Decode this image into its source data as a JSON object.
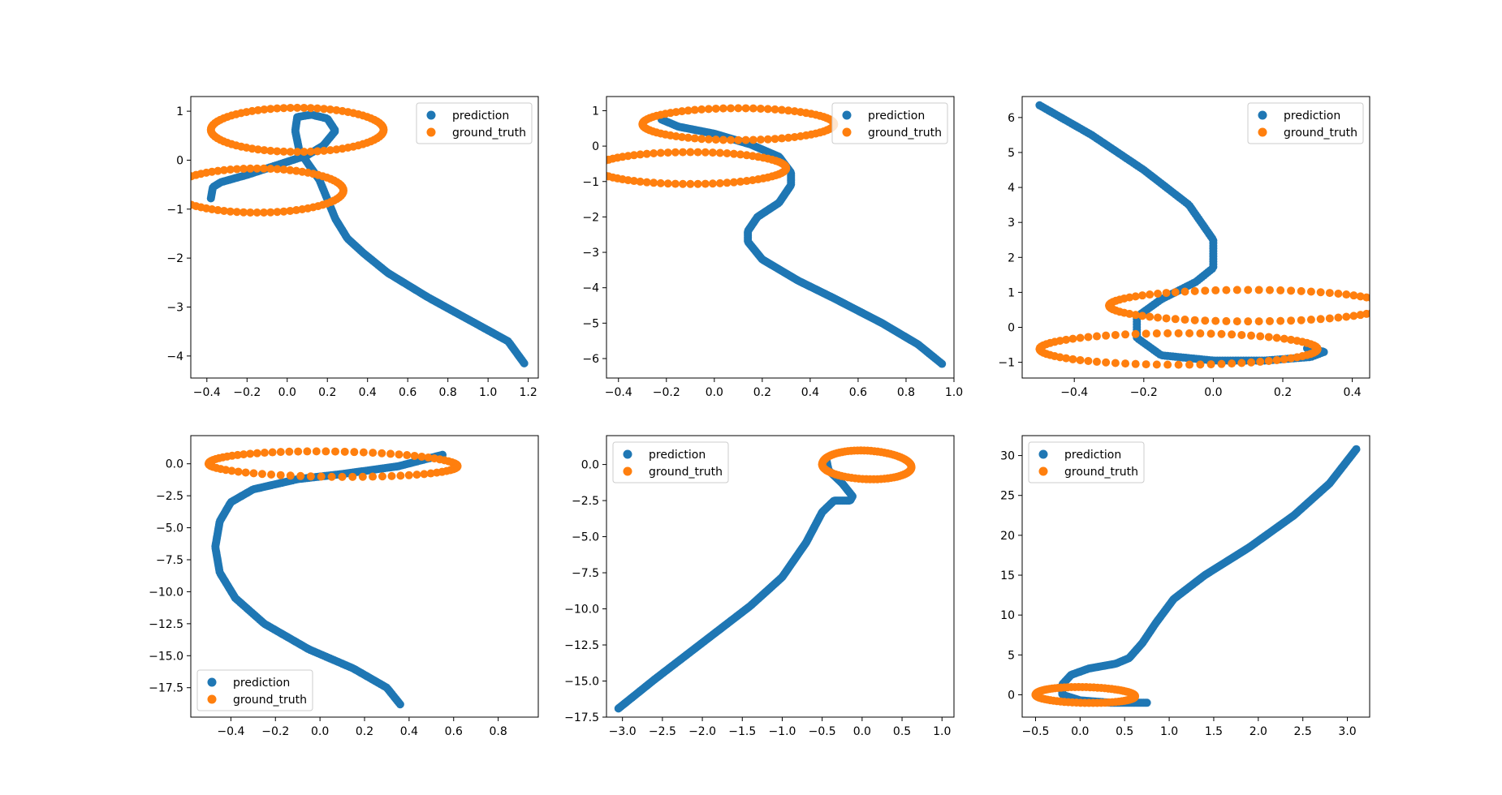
{
  "colors": {
    "prediction": "#1f77b4",
    "ground_truth": "#ff7f0e"
  },
  "legend_labels": [
    "prediction",
    "ground_truth"
  ],
  "chart_data": [
    {
      "type": "scatter",
      "xlim": [
        -0.48,
        1.25
      ],
      "ylim": [
        -4.45,
        1.3
      ],
      "xticks": [
        -0.4,
        -0.2,
        0.0,
        0.2,
        0.4,
        0.6,
        0.8,
        1.0,
        1.2
      ],
      "yticks": [
        -4,
        -3,
        -2,
        -1,
        0,
        1
      ],
      "legend_position": "top-right",
      "gt": {
        "shape": "figure8",
        "x_center": -0.05,
        "x_amp": 0.43,
        "y_amp": 1.05,
        "n": 160
      },
      "prediction": {
        "path": [
          [
            -0.38,
            -0.78
          ],
          [
            -0.37,
            -0.55
          ],
          [
            -0.33,
            -0.45
          ],
          [
            -0.2,
            -0.3
          ],
          [
            -0.05,
            -0.1
          ],
          [
            0.1,
            0.1
          ],
          [
            0.18,
            0.3
          ],
          [
            0.24,
            0.6
          ],
          [
            0.2,
            0.85
          ],
          [
            0.12,
            0.93
          ],
          [
            0.05,
            0.88
          ],
          [
            0.04,
            0.6
          ],
          [
            0.06,
            0.2
          ],
          [
            0.1,
            -0.05
          ],
          [
            0.16,
            -0.4
          ],
          [
            0.2,
            -0.8
          ],
          [
            0.24,
            -1.2
          ],
          [
            0.3,
            -1.6
          ],
          [
            0.38,
            -1.9
          ],
          [
            0.5,
            -2.3
          ],
          [
            0.7,
            -2.8
          ],
          [
            0.9,
            -3.25
          ],
          [
            1.1,
            -3.7
          ],
          [
            1.18,
            -4.15
          ]
        ],
        "n": 260
      }
    },
    {
      "type": "scatter",
      "xlim": [
        -0.45,
        1.0
      ],
      "ylim": [
        -6.55,
        1.4
      ],
      "xticks": [
        -0.4,
        -0.2,
        0.0,
        0.2,
        0.4,
        0.6,
        0.8,
        1.0
      ],
      "yticks": [
        -6,
        -5,
        -4,
        -3,
        -2,
        -1,
        0,
        1
      ],
      "legend_position": "top-right",
      "gt": {
        "shape": "figure8",
        "x_center": 0.0,
        "x_amp": 0.4,
        "y_amp": 1.05,
        "n": 160
      },
      "prediction": {
        "path": [
          [
            -0.22,
            0.75
          ],
          [
            -0.15,
            0.55
          ],
          [
            0.0,
            0.35
          ],
          [
            0.15,
            0.05
          ],
          [
            0.27,
            -0.3
          ],
          [
            0.32,
            -0.75
          ],
          [
            0.32,
            -1.1
          ],
          [
            0.27,
            -1.6
          ],
          [
            0.18,
            -2.0
          ],
          [
            0.14,
            -2.4
          ],
          [
            0.14,
            -2.7
          ],
          [
            0.2,
            -3.2
          ],
          [
            0.35,
            -3.8
          ],
          [
            0.5,
            -4.3
          ],
          [
            0.7,
            -5.0
          ],
          [
            0.85,
            -5.6
          ],
          [
            0.95,
            -6.15
          ]
        ],
        "n": 260
      }
    },
    {
      "type": "scatter",
      "xlim": [
        -0.55,
        0.45
      ],
      "ylim": [
        -1.45,
        6.6
      ],
      "xticks": [
        -0.4,
        -0.2,
        0.0,
        0.2,
        0.4
      ],
      "yticks": [
        -1,
        0,
        1,
        2,
        3,
        4,
        5,
        6
      ],
      "legend_position": "top-right",
      "gt": {
        "shape": "figure8",
        "x_center": 0.0,
        "x_amp": 0.4,
        "y_amp": 1.05,
        "n": 160
      },
      "prediction": {
        "path": [
          [
            -0.5,
            6.35
          ],
          [
            -0.35,
            5.5
          ],
          [
            -0.2,
            4.5
          ],
          [
            -0.07,
            3.5
          ],
          [
            0.0,
            2.5
          ],
          [
            0.0,
            1.7
          ],
          [
            -0.05,
            1.3
          ],
          [
            -0.15,
            0.8
          ],
          [
            -0.22,
            0.3
          ],
          [
            -0.22,
            -0.3
          ],
          [
            -0.15,
            -0.8
          ],
          [
            0.0,
            -0.95
          ],
          [
            0.15,
            -0.95
          ],
          [
            0.28,
            -0.85
          ],
          [
            0.32,
            -0.7
          ],
          [
            0.27,
            -0.6
          ]
        ],
        "n": 220
      }
    },
    {
      "type": "scatter",
      "xlim": [
        -0.58,
        0.98
      ],
      "ylim": [
        -19.8,
        2.2
      ],
      "xticks": [
        -0.4,
        -0.2,
        0.0,
        0.2,
        0.4,
        0.6,
        0.8
      ],
      "yticks": [
        -17.5,
        -15.0,
        -12.5,
        -10.0,
        -7.5,
        -5.0,
        -2.5,
        0.0
      ],
      "legend_position": "bottom-left",
      "gt": {
        "shape": "spiral",
        "x_start": -0.5,
        "x_end": 0.93,
        "y_amp": 1.05,
        "n": 80
      },
      "prediction": {
        "path": [
          [
            0.55,
            0.7
          ],
          [
            0.35,
            -0.2
          ],
          [
            0.1,
            -0.8
          ],
          [
            -0.1,
            -1.2
          ],
          [
            -0.3,
            -2.0
          ],
          [
            -0.4,
            -3.0
          ],
          [
            -0.45,
            -4.5
          ],
          [
            -0.47,
            -6.5
          ],
          [
            -0.45,
            -8.5
          ],
          [
            -0.38,
            -10.5
          ],
          [
            -0.25,
            -12.5
          ],
          [
            -0.05,
            -14.5
          ],
          [
            0.15,
            -16.0
          ],
          [
            0.3,
            -17.5
          ],
          [
            0.36,
            -18.8
          ]
        ],
        "n": 240
      }
    },
    {
      "type": "scatter",
      "xlim": [
        -3.2,
        1.15
      ],
      "ylim": [
        -17.5,
        2.0
      ],
      "xticks": [
        -3.0,
        -2.5,
        -2.0,
        -1.5,
        -1.0,
        -0.5,
        0.0,
        0.5,
        1.0
      ],
      "yticks": [
        -17.5,
        -15.0,
        -12.5,
        -10.0,
        -7.5,
        -5.0,
        -2.5,
        0.0
      ],
      "legend_position": "top-left",
      "gt": {
        "shape": "spiral",
        "x_start": -0.5,
        "x_end": 0.93,
        "y_amp": 1.05,
        "n": 80
      },
      "prediction": {
        "path": [
          [
            -3.05,
            -16.9
          ],
          [
            -2.6,
            -14.9
          ],
          [
            -2.2,
            -13.2
          ],
          [
            -1.8,
            -11.5
          ],
          [
            -1.4,
            -9.8
          ],
          [
            -1.0,
            -7.8
          ],
          [
            -0.7,
            -5.4
          ],
          [
            -0.5,
            -3.3
          ],
          [
            -0.35,
            -2.5
          ],
          [
            -0.15,
            -2.5
          ],
          [
            -0.12,
            -2.2
          ],
          [
            -0.25,
            -1.3
          ],
          [
            -0.42,
            -0.4
          ],
          [
            -0.45,
            0.4
          ]
        ],
        "n": 260
      }
    },
    {
      "type": "scatter",
      "xlim": [
        -0.65,
        3.25
      ],
      "ylim": [
        -2.8,
        32.5
      ],
      "xticks": [
        -0.5,
        0.0,
        0.5,
        1.0,
        1.5,
        2.0,
        2.5,
        3.0
      ],
      "yticks": [
        0,
        5,
        10,
        15,
        20,
        25,
        30
      ],
      "legend_position": "top-left",
      "gt": {
        "shape": "spiral",
        "x_start": -0.5,
        "x_end": 0.93,
        "y_amp": 1.05,
        "n": 80
      },
      "prediction": {
        "path": [
          [
            0.75,
            -1.0
          ],
          [
            0.35,
            -1.0
          ],
          [
            0.0,
            -0.7
          ],
          [
            -0.2,
            0.0
          ],
          [
            -0.2,
            1.3
          ],
          [
            -0.1,
            2.5
          ],
          [
            0.1,
            3.3
          ],
          [
            0.4,
            3.9
          ],
          [
            0.55,
            4.6
          ],
          [
            0.7,
            6.5
          ],
          [
            0.85,
            9.0
          ],
          [
            1.05,
            12.0
          ],
          [
            1.4,
            15.0
          ],
          [
            1.9,
            18.5
          ],
          [
            2.4,
            22.5
          ],
          [
            2.8,
            26.5
          ],
          [
            3.1,
            30.8
          ]
        ],
        "n": 280
      }
    }
  ]
}
